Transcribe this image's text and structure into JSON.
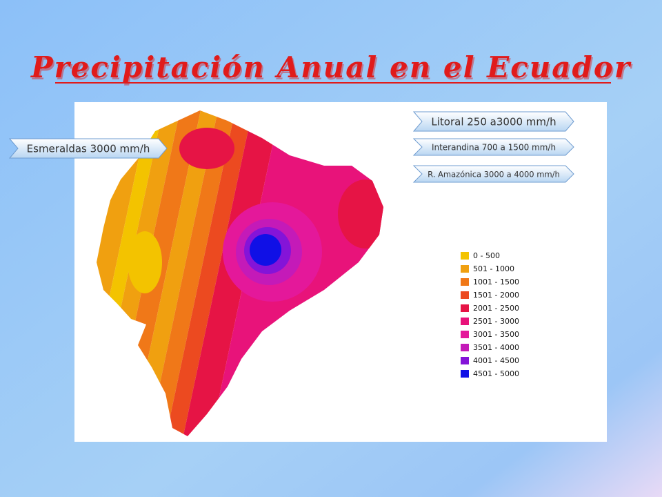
{
  "title": "Precipitación Anual en el Ecuador",
  "callouts": [
    "Litoral 250 a3000 mm/h",
    "Interandina 700 a 1500 mm/h",
    "R. Amazónica 3000  a 4000  mm/h",
    "Esmeraldas 3000 mm/h"
  ],
  "legend": [
    {
      "label": "0 - 500",
      "color": "#f3c300"
    },
    {
      "label": "501 - 1000",
      "color": "#f0a010"
    },
    {
      "label": "1001 - 1500",
      "color": "#f07818"
    },
    {
      "label": "1501 - 2000",
      "color": "#ec4a20"
    },
    {
      "label": "2001 - 2500",
      "color": "#e61445"
    },
    {
      "label": "2501 - 3000",
      "color": "#e8137a"
    },
    {
      "label": "3001 - 3500",
      "color": "#e4189a"
    },
    {
      "label": "3501 - 4000",
      "color": "#c41ab8"
    },
    {
      "label": "4001 - 4500",
      "color": "#8414d8"
    },
    {
      "label": "4501 - 5000",
      "color": "#1010e6"
    }
  ]
}
